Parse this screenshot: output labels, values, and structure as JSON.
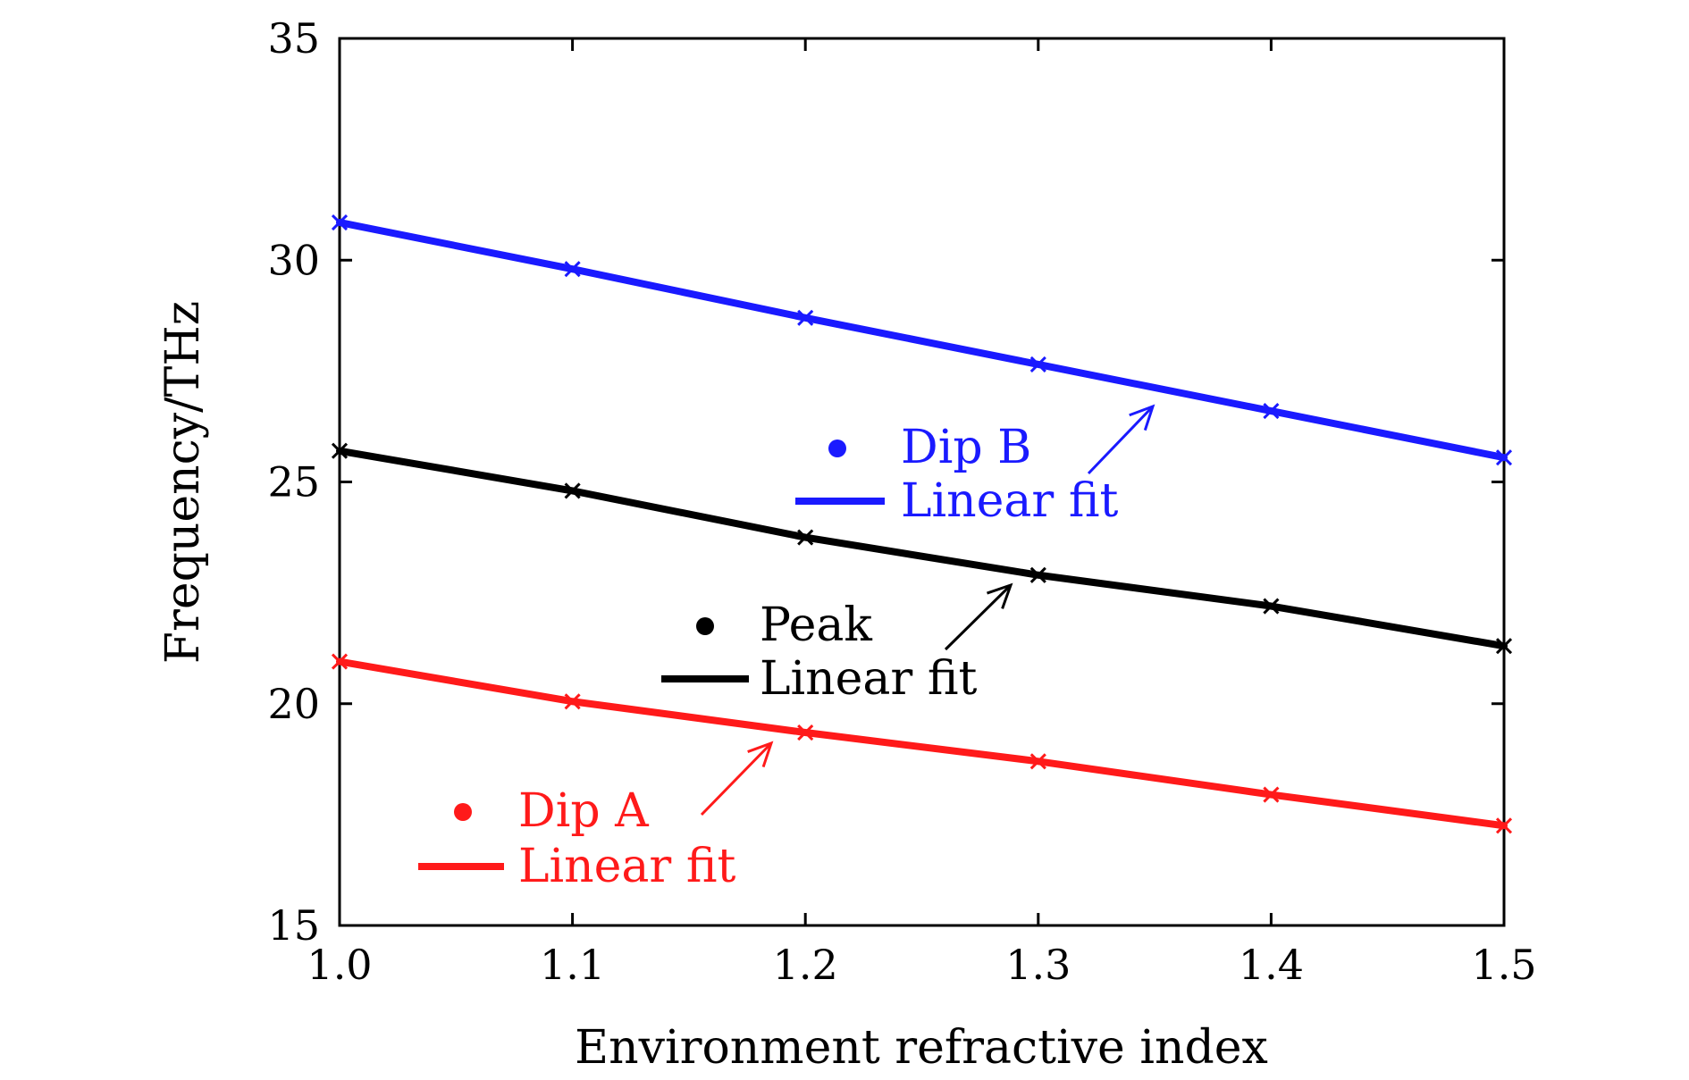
{
  "chart_data": {
    "type": "line",
    "title": "",
    "xlabel": "Environment refractive index",
    "ylabel": "Frequency/THz",
    "xlim": [
      1.0,
      1.5
    ],
    "ylim": [
      15,
      35
    ],
    "xticks": [
      "1.0",
      "1.1",
      "1.2",
      "1.3",
      "1.4",
      "1.5"
    ],
    "yticks": [
      "15",
      "20",
      "25",
      "30",
      "35"
    ],
    "grid": false,
    "x": [
      1.0,
      1.1,
      1.2,
      1.3,
      1.4,
      1.5
    ],
    "series": [
      {
        "name": "Dip B",
        "fit_label": "Linear fit",
        "color": "#1a1aff",
        "values": [
          30.85,
          29.8,
          28.7,
          27.65,
          26.6,
          25.55
        ]
      },
      {
        "name": "Peak",
        "fit_label": "Linear fit",
        "color": "#000000",
        "values": [
          25.7,
          24.8,
          23.75,
          22.9,
          22.2,
          21.3
        ]
      },
      {
        "name": "Dip A",
        "fit_label": "Linear fit",
        "color": "#ff1a1a",
        "values": [
          20.95,
          20.05,
          19.35,
          18.7,
          17.95,
          17.25
        ]
      }
    ]
  }
}
